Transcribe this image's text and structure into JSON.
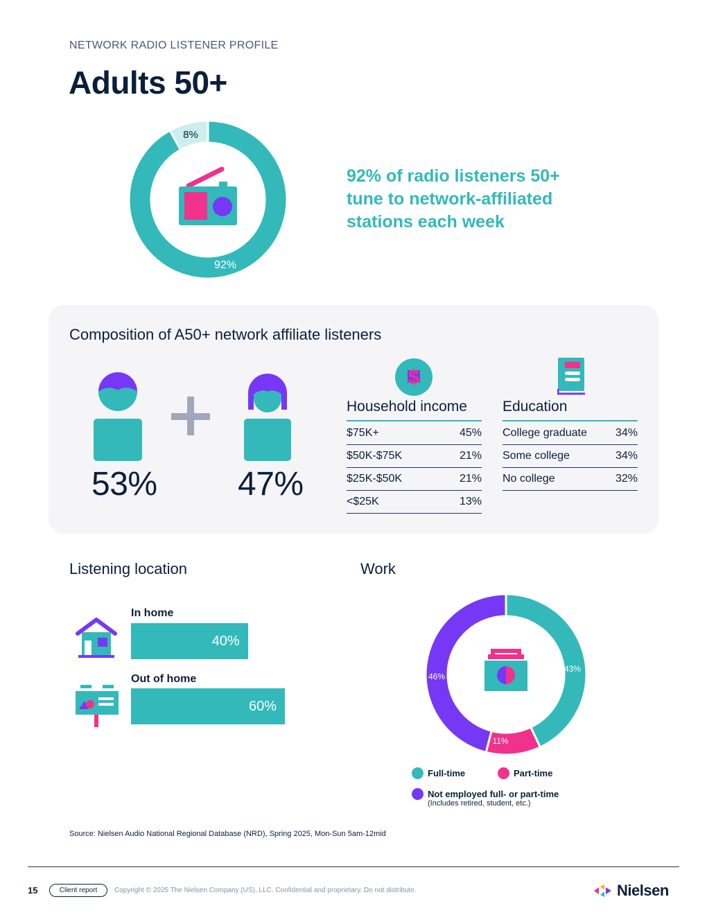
{
  "header": {
    "eyebrow": "NETWORK RADIO LISTENER PROFILE",
    "title": "Adults 50+"
  },
  "reach": {
    "affiliated_pct": 92,
    "other_pct": 8,
    "affiliated_label": "92%",
    "other_label": "8%",
    "callout": "92% of radio listeners 50+ tune to network-affiliated stations each week"
  },
  "composition": {
    "title": "Composition of A50+ network affiliate listeners",
    "men_pct": "53%",
    "women_pct": "47%",
    "income": {
      "title": "Household income",
      "rows": [
        {
          "label": "$75K+",
          "value": "45%"
        },
        {
          "label": "$50K-$75K",
          "value": "21%"
        },
        {
          "label": "$25K-$50K",
          "value": "21%"
        },
        {
          "label": "<$25K",
          "value": "13%"
        }
      ]
    },
    "education": {
      "title": "Education",
      "rows": [
        {
          "label": "College graduate",
          "value": "34%"
        },
        {
          "label": "Some college",
          "value": "34%"
        },
        {
          "label": "No college",
          "value": "32%"
        }
      ]
    }
  },
  "location": {
    "title": "Listening location",
    "in_home_label": "In home",
    "in_home_value": "40%",
    "in_home_pct": 40,
    "out_home_label": "Out of home",
    "out_home_value": "60%",
    "out_home_pct": 60
  },
  "work": {
    "title": "Work",
    "slices": [
      {
        "name": "Full-time",
        "value": 43,
        "label": "43%",
        "color": "#33b9b9"
      },
      {
        "name": "Part-time",
        "value": 11,
        "label": "11%",
        "color": "#f0328c"
      },
      {
        "name": "Not employed full- or part-time",
        "value": 46,
        "label": "46%",
        "color": "#7638f5"
      }
    ],
    "legend_note": "(Includes retired, student, etc.)"
  },
  "colors": {
    "teal": "#33b9b9",
    "light_teal": "#cdeeee",
    "pink": "#f0328c",
    "purple": "#7638f5",
    "navy": "#0b1f3a",
    "gray_plus": "#a3a7bc"
  },
  "footer": {
    "source": "Source: Nielsen Audio National Regional Database (NRD), Spring 2025, Mon-Sun 5am-12mid",
    "page_number": "15",
    "tag": "Client report",
    "copyright": "Copyright © 2025 The Nielsen Company (US), LLC. Confidential and proprietary. Do not distribute.",
    "logo_text": "Nielsen"
  }
}
